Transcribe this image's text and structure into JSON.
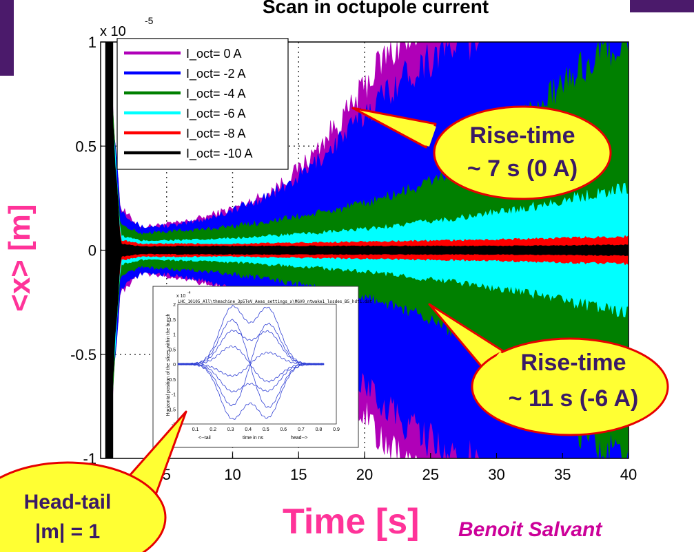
{
  "title": "Scan in octupole current",
  "chart_data": {
    "type": "area",
    "xlabel": "Time [s]",
    "ylabel": "<x> [m]",
    "xlim": [
      0,
      40
    ],
    "ylim": [
      -1,
      1
    ],
    "y_multiplier": "x 10",
    "y_multiplier_exp": "-5",
    "x_ticks": [
      "5",
      "10",
      "15",
      "20",
      "25",
      "30",
      "35",
      "40"
    ],
    "y_ticks": [
      "1",
      "0.5",
      "0",
      "-0.5",
      "-1"
    ],
    "x_tick_values": [
      5,
      10,
      15,
      20,
      25,
      30,
      35,
      40
    ],
    "y_tick_values": [
      1,
      0.5,
      0,
      -0.5,
      -1
    ],
    "grid": "dotted",
    "legend_position": "top-left",
    "series": [
      {
        "name": "I_oct= 0 A",
        "color": "#b000b8",
        "x": [
          0.5,
          1.5,
          3,
          6,
          8,
          10,
          12,
          14,
          16,
          17.5,
          19,
          20,
          21,
          22,
          23,
          24
        ],
        "y": [
          1,
          0.2,
          0.11,
          0.13,
          0.16,
          0.2,
          0.25,
          0.33,
          0.45,
          0.57,
          0.68,
          0.78,
          0.88,
          0.95,
          1,
          1
        ]
      },
      {
        "name": "I_oct= -2 A",
        "color": "#0000ff",
        "x": [
          0.5,
          1.5,
          3,
          6,
          8,
          10,
          12,
          14,
          16,
          18,
          20,
          22,
          24,
          26,
          27.5,
          29
        ],
        "y": [
          1,
          0.2,
          0.11,
          0.12,
          0.15,
          0.19,
          0.24,
          0.3,
          0.4,
          0.52,
          0.65,
          0.78,
          0.88,
          0.96,
          1,
          1
        ]
      },
      {
        "name": "I_oct= -4 A",
        "color": "#008000",
        "x": [
          0.5,
          1.5,
          3,
          8,
          12,
          16,
          20,
          24,
          26,
          28,
          30,
          32,
          34,
          36,
          38,
          40
        ],
        "y": [
          1,
          0.12,
          0.08,
          0.1,
          0.13,
          0.17,
          0.22,
          0.3,
          0.36,
          0.43,
          0.52,
          0.62,
          0.73,
          0.85,
          0.95,
          1
        ]
      },
      {
        "name": "I_oct= -6 A",
        "color": "#00ffff",
        "x": [
          0.5,
          1.5,
          3,
          8,
          12,
          16,
          20,
          24,
          28,
          32,
          36,
          40
        ],
        "y": [
          1,
          0.07,
          0.045,
          0.05,
          0.065,
          0.08,
          0.1,
          0.13,
          0.16,
          0.2,
          0.25,
          0.3
        ]
      },
      {
        "name": "I_oct= -8 A",
        "color": "#ff0000",
        "x": [
          0.5,
          1.5,
          3,
          10,
          20,
          30,
          40
        ],
        "y": [
          1,
          0.05,
          0.03,
          0.03,
          0.04,
          0.05,
          0.065
        ]
      },
      {
        "name": "I_oct= -10 A",
        "color": "#000000",
        "x": [
          0.5,
          1.5,
          3,
          10,
          20,
          30,
          40
        ],
        "y": [
          1,
          0.03,
          0.018,
          0.02,
          0.02,
          0.02,
          0.025
        ]
      }
    ]
  },
  "callouts": {
    "rise_top_line1": "Rise-time",
    "rise_top_line2": "~ 7 s (0 A)",
    "rise_bottom_line1": "Rise-time",
    "rise_bottom_line2": "~ 11 s (-6 A)",
    "headtail_line1": "Head-tail",
    "headtail_line2": "|m| = 1"
  },
  "inset": {
    "title": "LHC_10105_All\\thmachine_3p5TeV_Aeas_settings_x\\MGV0_ntwake1_losdes_B5_hdt1.dat",
    "ylabel": "Horizontal position of the slices within the bunch",
    "y_multiplier": "x 10",
    "y_multiplier_exp": "-4",
    "xlabel_left": "<--tail",
    "xlabel_mid": "time in ns",
    "xlabel_right": "head-->",
    "x_ticks": [
      "0",
      "0.1",
      "0.2",
      "0.3",
      "0.4",
      "0.5",
      "0.6",
      "0.7",
      "0.8",
      "0.9"
    ],
    "y_ticks": [
      "2",
      "1.5",
      "1",
      "0.5",
      "0",
      "-0.5",
      "-1",
      "-1.5",
      "-2"
    ],
    "curve_color": "#2f3fd4"
  },
  "author": "Benoit Salvant"
}
